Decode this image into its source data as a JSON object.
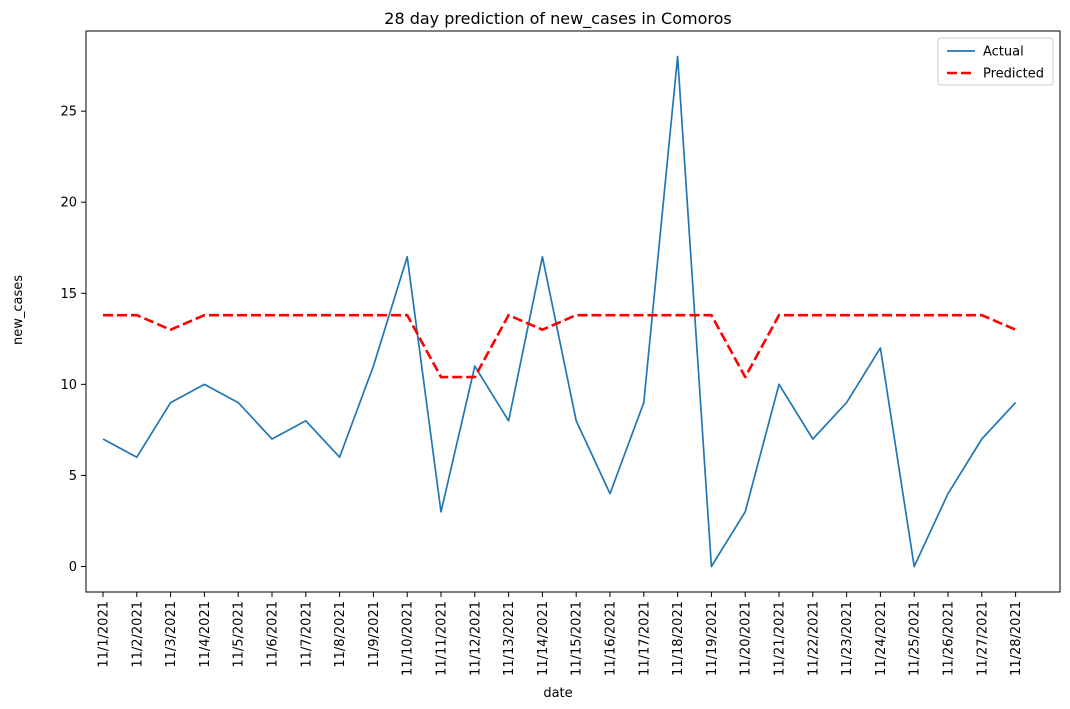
{
  "chart_data": {
    "type": "line",
    "title": "28 day prediction of new_cases in Comoros",
    "xlabel": "date",
    "ylabel": "new_cases",
    "categories": [
      "11/1/2021",
      "11/2/2021",
      "11/3/2021",
      "11/4/2021",
      "11/5/2021",
      "11/6/2021",
      "11/7/2021",
      "11/8/2021",
      "11/9/2021",
      "11/10/2021",
      "11/11/2021",
      "11/12/2021",
      "11/13/2021",
      "11/14/2021",
      "11/15/2021",
      "11/16/2021",
      "11/17/2021",
      "11/18/2021",
      "11/19/2021",
      "11/20/2021",
      "11/21/2021",
      "11/22/2021",
      "11/23/2021",
      "11/24/2021",
      "11/25/2021",
      "11/26/2021",
      "11/27/2021",
      "11/28/2021"
    ],
    "series": [
      {
        "name": "Actual",
        "color": "#1f77b4",
        "style": "solid",
        "values": [
          7,
          6,
          9,
          10,
          9,
          7,
          8,
          6,
          11,
          17,
          3,
          11,
          8,
          17,
          8,
          4,
          9,
          28,
          0,
          3,
          10,
          7,
          9,
          12,
          0,
          4,
          7,
          9
        ]
      },
      {
        "name": "Predicted",
        "color": "#ff0000",
        "style": "dashed",
        "values": [
          13.8,
          13.8,
          13.0,
          13.8,
          13.8,
          13.8,
          13.8,
          13.8,
          13.8,
          13.8,
          10.4,
          10.4,
          13.8,
          13.0,
          13.8,
          13.8,
          13.8,
          13.8,
          13.8,
          10.4,
          13.8,
          13.8,
          13.8,
          13.8,
          13.8,
          13.8,
          13.8,
          13.0
        ]
      }
    ],
    "yticks": [
      0,
      5,
      10,
      15,
      20,
      25
    ],
    "ylim": [
      -1.4,
      29.4
    ],
    "grid": false,
    "legend_position": "top-right"
  }
}
